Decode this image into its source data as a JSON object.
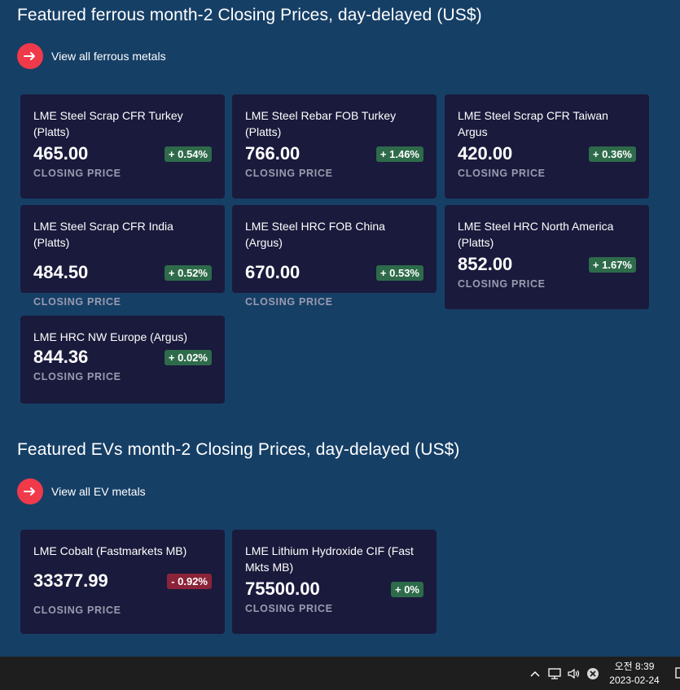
{
  "ferrous": {
    "title": "Featured ferrous month-2 Closing Prices, day-delayed (US$)",
    "link_label": "View all ferrous metals",
    "cards": [
      {
        "name": "LME Steel Scrap CFR Turkey (Platts)",
        "price": "465.00",
        "change": "+ 0.54%",
        "caption": "CLOSING PRICE"
      },
      {
        "name": "LME Steel Rebar FOB Turkey (Platts)",
        "price": "766.00",
        "change": "+ 1.46%",
        "caption": "CLOSING PRICE"
      },
      {
        "name": "LME Steel Scrap CFR Taiwan Argus",
        "price": "420.00",
        "change": "+ 0.36%",
        "caption": "CLOSING PRICE"
      },
      {
        "name": "LME Steel Scrap CFR India (Platts)",
        "price": "484.50",
        "change": "+ 0.52%",
        "caption": "CLOSING PRICE"
      },
      {
        "name": "LME Steel HRC FOB China (Argus)",
        "price": "670.00",
        "change": "+ 0.53%",
        "caption": "CLOSING PRICE"
      },
      {
        "name": "LME Steel HRC North America (Platts)",
        "price": "852.00",
        "change": "+ 1.67%",
        "caption": "CLOSING PRICE"
      },
      {
        "name": "LME HRC NW Europe (Argus)",
        "price": "844.36",
        "change": "+ 0.02%",
        "caption": "CLOSING PRICE"
      }
    ]
  },
  "evs": {
    "title": "Featured EVs month-2 Closing Prices, day-delayed (US$)",
    "link_label": "View all EV metals",
    "cards": [
      {
        "name": "LME Cobalt (Fastmarkets MB)",
        "price": "33377.99",
        "change": "- 0.92%",
        "caption": "CLOSING PRICE"
      },
      {
        "name": "LME Lithium Hydroxide CIF (Fast Mkts MB)",
        "price": "75500.00",
        "change": "+ 0%",
        "caption": "CLOSING PRICE"
      }
    ]
  },
  "colors": {
    "background": "#163f66",
    "card": "#1a1a3c",
    "accent": "#f03a4a",
    "positive": "#2e6b4a",
    "negative": "#8b2438"
  },
  "taskbar": {
    "time": "오전 8:39",
    "date": "2023-02-24",
    "icons": [
      "chevron-up-icon",
      "network-icon",
      "volume-icon",
      "close-circle-icon",
      "notification-icon"
    ]
  }
}
